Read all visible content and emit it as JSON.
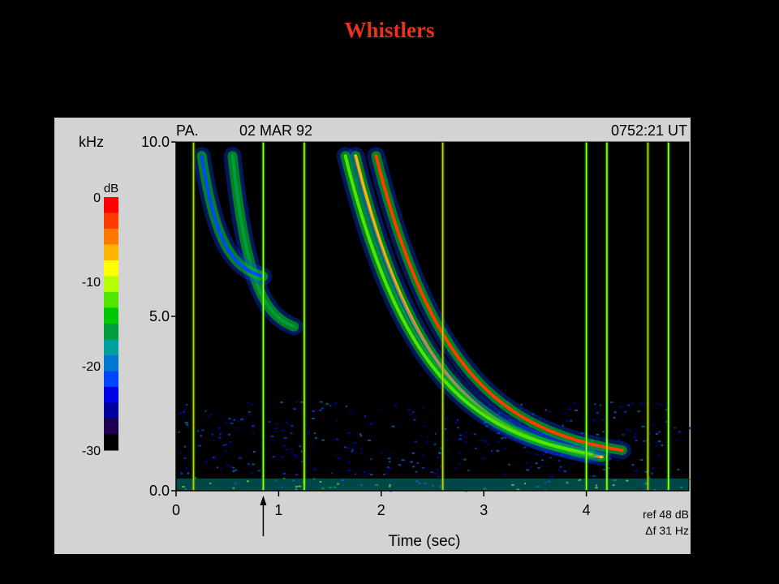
{
  "slide": {
    "title": "Whistlers"
  },
  "chart_data": {
    "type": "heatmap",
    "title": "",
    "header": {
      "station": "PA.",
      "date": "02 MAR 92",
      "time": "0752:21 UT"
    },
    "xlabel": "Time (sec)",
    "ylabel": "kHz",
    "xlim": [
      0,
      5
    ],
    "ylim": [
      0.0,
      10.0
    ],
    "x_ticks": [
      "0",
      "1",
      "2",
      "3",
      "4"
    ],
    "y_ticks": [
      "0.0",
      "5.0",
      "10.0"
    ],
    "colorbar": {
      "label": "dB",
      "ticks": [
        "0",
        "-10",
        "-20",
        "-30"
      ],
      "range": [
        -30,
        0
      ]
    },
    "colors": [
      "#ff0000",
      "#ff3c00",
      "#ff7800",
      "#ffb400",
      "#ffff00",
      "#b4ff00",
      "#50e600",
      "#00c800",
      "#009b3c",
      "#00a0a0",
      "#0078d2",
      "#0046ff",
      "#0000e6",
      "#0000a0",
      "#1e0050",
      "#000000"
    ],
    "annotations": {
      "ref": "ref 48 dB",
      "delta_f": "Δf 31 Hz",
      "marker_time_sec": 0.85
    },
    "whistlers": [
      {
        "t0_sec": 1.75,
        "f_end_khz": 0.6,
        "intensity_db": -6
      },
      {
        "t0_sec": 1.65,
        "f_end_khz": 0.7,
        "intensity_db": -12
      },
      {
        "t0_sec": 1.95,
        "f_end_khz": 0.8,
        "intensity_db": -2
      },
      {
        "t0_sec": 0.55,
        "f_end_khz": 4.5,
        "intensity_db": -16
      },
      {
        "t0_sec": 0.25,
        "f_end_khz": 6.0,
        "intensity_db": -22
      }
    ],
    "sferics_sec": [
      0.17,
      0.85,
      1.25,
      2.6,
      4.0,
      4.2,
      4.6,
      4.8
    ]
  }
}
